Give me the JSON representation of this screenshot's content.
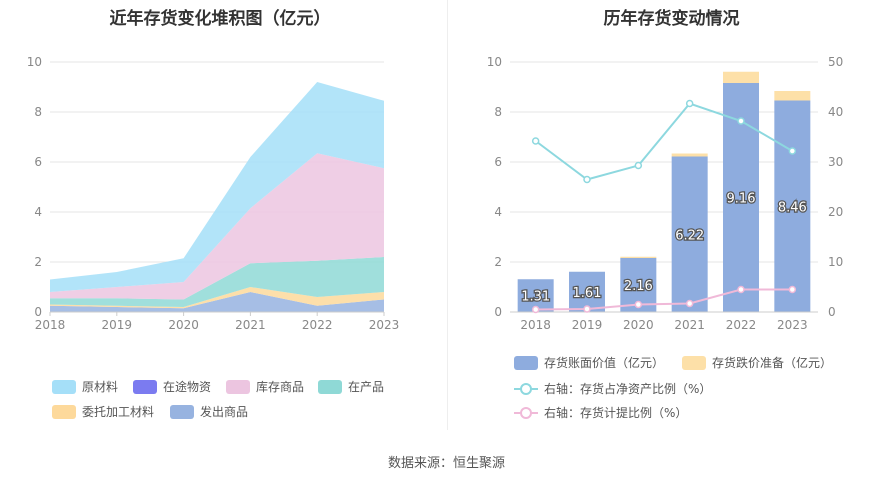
{
  "left_title": "近年存货变化堆积图（亿元）",
  "right_title": "历年存货变动情况",
  "source": "数据来源：恒生聚源",
  "colors": {
    "raw": "#a5dff8",
    "transit": "#7b7bf0",
    "inventory": "#ecc5e0",
    "wip": "#8fd9d6",
    "outsourced": "#fdd99b",
    "shipped": "#97b3e0",
    "bar_book": "#8eacde",
    "bar_reserve": "#fde0a8",
    "line_net": "#8dd8df",
    "line_provision": "#f0b9d8"
  },
  "chart_data": [
    {
      "type": "area",
      "stacked": true,
      "title": "近年存货变化堆积图（亿元）",
      "categories": [
        "2018",
        "2019",
        "2020",
        "2021",
        "2022",
        "2023"
      ],
      "ylim": [
        0,
        10
      ],
      "yticks": [
        "0",
        "2",
        "4",
        "6",
        "8",
        "10"
      ],
      "series": [
        {
          "name": "发出商品",
          "key": "shipped",
          "values": [
            0.25,
            0.2,
            0.15,
            0.8,
            0.25,
            0.5
          ]
        },
        {
          "name": "委托加工材料",
          "key": "outsourced",
          "values": [
            0.05,
            0.05,
            0.05,
            0.2,
            0.35,
            0.3
          ]
        },
        {
          "name": "在产品",
          "key": "wip",
          "values": [
            0.25,
            0.3,
            0.3,
            0.95,
            1.45,
            1.4
          ]
        },
        {
          "name": "在途物资",
          "key": "transit",
          "values": [
            0,
            0,
            0,
            0,
            0,
            0
          ]
        },
        {
          "name": "库存商品",
          "key": "inventory",
          "values": [
            0.25,
            0.45,
            0.7,
            2.2,
            4.3,
            3.55
          ]
        },
        {
          "name": "原材料",
          "key": "raw",
          "values": [
            0.5,
            0.6,
            0.95,
            2.05,
            2.85,
            2.7
          ]
        }
      ],
      "legend": [
        "原材料",
        "在途物资",
        "库存商品",
        "在产品",
        "委托加工材料",
        "发出商品"
      ]
    },
    {
      "type": "bar",
      "stacked": true,
      "title": "历年存货变动情况",
      "categories": [
        "2018",
        "2019",
        "2020",
        "2021",
        "2022",
        "2023"
      ],
      "ylim": [
        0,
        10
      ],
      "yticks": [
        "0",
        "2",
        "4",
        "6",
        "8",
        "10"
      ],
      "y2lim": [
        0,
        50
      ],
      "y2ticks": [
        "0",
        "10",
        "20",
        "30",
        "40",
        "50"
      ],
      "series": [
        {
          "name": "存货账面价值（亿元）",
          "key": "book",
          "values": [
            1.31,
            1.61,
            2.16,
            6.22,
            9.16,
            8.46
          ],
          "labels": [
            "1.31",
            "1.61",
            "2.16",
            "6.22",
            "9.16",
            "8.46"
          ]
        },
        {
          "name": "存货跌价准备（亿元）",
          "key": "reserve",
          "values": [
            0.0,
            0.0,
            0.05,
            0.12,
            0.45,
            0.38
          ]
        }
      ],
      "lines": [
        {
          "name": "右轴：存货占净资产比例（%）",
          "key": "net",
          "values": [
            34.2,
            26.5,
            29.3,
            41.7,
            38.2,
            32.2
          ]
        },
        {
          "name": "右轴：存货计提比例（%）",
          "key": "provision",
          "values": [
            0.5,
            0.6,
            1.5,
            1.7,
            4.5,
            4.5
          ]
        }
      ]
    }
  ]
}
